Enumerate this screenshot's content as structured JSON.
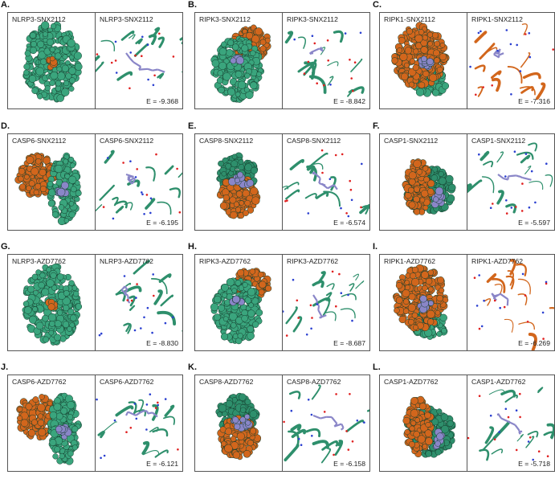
{
  "figure": {
    "colors": {
      "protein_green": "#2e8f6c",
      "protein_green_light": "#3aa57d",
      "partner_orange": "#d2661c",
      "ligand_purple": "#8a86c8",
      "border": "#555555"
    },
    "panels": [
      {
        "letter": "A.",
        "surface_label": "NLRP3-SNX2112",
        "interaction_label": "NLRP3-SNX2112",
        "energy": "E = -9.368"
      },
      {
        "letter": "B.",
        "surface_label": "RIPK3-SNX2112",
        "interaction_label": "RIPK3-SNX2112",
        "energy": "E = -8.842"
      },
      {
        "letter": "C.",
        "surface_label": "RIPK1-SNX2112",
        "interaction_label": "RIPK1-SNX2112",
        "energy": "E = -7.316"
      },
      {
        "letter": "D.",
        "surface_label": "CASP6-SNX2112",
        "interaction_label": "CASP6-SNX2112",
        "energy": "E = -6.195"
      },
      {
        "letter": "E.",
        "surface_label": "CASP8-SNX2112",
        "interaction_label": "CASP8-SNX2112",
        "energy": "E = -6.574"
      },
      {
        "letter": "F.",
        "surface_label": "CASP1-SNX2112",
        "interaction_label": "CASP1-SNX2112",
        "energy": "E = -5.597"
      },
      {
        "letter": "G.",
        "surface_label": "NLRP3-AZD7762",
        "interaction_label": "NLRP3-AZD7762",
        "energy": "E = -8.830"
      },
      {
        "letter": "H.",
        "surface_label": "RIPK3-AZD7762",
        "interaction_label": "RIPK3-AZD7762",
        "energy": "E = -8.687"
      },
      {
        "letter": "I.",
        "surface_label": "RIPK1-AZD7762",
        "interaction_label": "RIPK1-AZD7762",
        "energy": "E = -6.269"
      },
      {
        "letter": "J.",
        "surface_label": "CASP6-AZD7762",
        "interaction_label": "CASP6-AZD7762",
        "energy": "E = -6.121"
      },
      {
        "letter": "K.",
        "surface_label": "CASP8-AZD7762",
        "interaction_label": "CASP8-AZD7762",
        "energy": "E = -6.158"
      },
      {
        "letter": "L.",
        "surface_label": "CASP1-AZD7762",
        "interaction_label": "CASP1-AZD7762",
        "energy": "E = -5.718"
      }
    ]
  }
}
